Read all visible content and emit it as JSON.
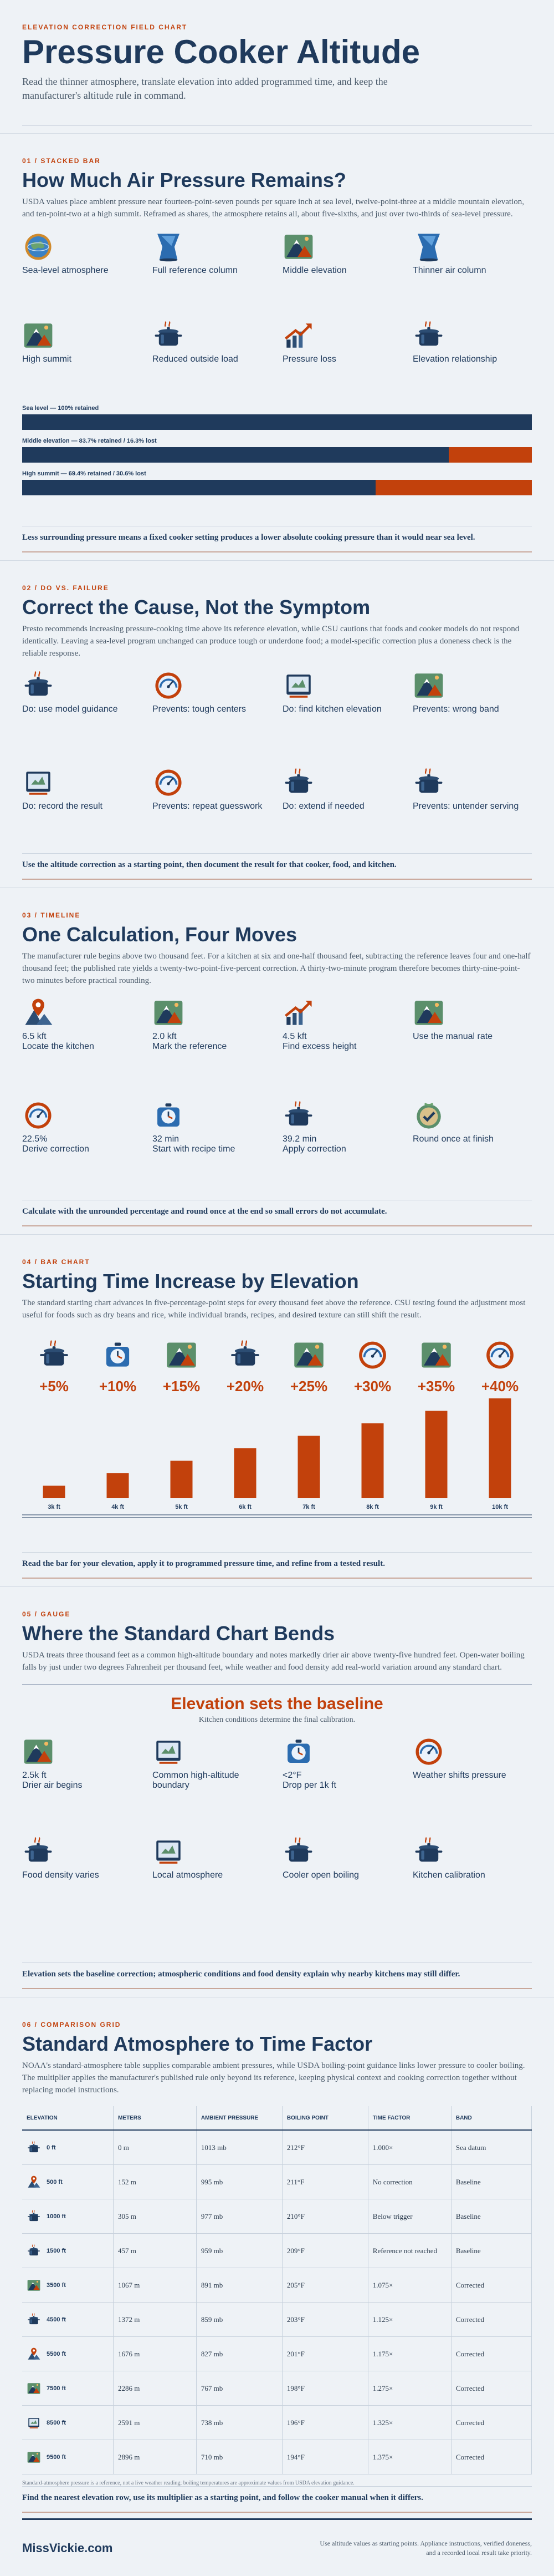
{
  "header": {
    "kicker": "ELEVATION CORRECTION FIELD CHART",
    "title": "Pressure Cooker Altitude",
    "subtitle": "Read the thinner atmosphere, translate elevation into added programmed time, and keep the manufacturer's altitude rule in command."
  },
  "pressure": {
    "label": "01 / STACKED BAR",
    "heading": "How Much Air Pressure Remains?",
    "text": "USDA values place ambient pressure near fourteen-point-seven pounds per square inch at sea level, twelve-point-three at a middle mountain elevation, and ten-point-two at a high summit. Reframed as shares, the atmosphere retains all, about five-sixths, and just over two-thirds of sea-level pressure.",
    "cards": [
      "Sea-level atmosphere",
      "Full reference column",
      "Middle elevation",
      "Thinner air column",
      "High summit",
      "Reduced outside load",
      "Pressure loss",
      "Elevation relationship"
    ],
    "conclusion": "Less surrounding pressure means a fixed cooker setting produces a lower absolute cooking pressure than it would near sea level."
  },
  "failure": {
    "label": "02 / DO VS. FAILURE",
    "heading": "Correct the Cause, Not the Symptom",
    "text": "Presto recommends increasing pressure-cooking time above its reference elevation, while CSU cautions that foods and cooker models do not respond identically. Leaving a sea-level program unchanged can produce tough or underdone food; a model-specific correction plus a doneness check is the reliable response.",
    "cards": [
      "Do: use model guidance",
      "Prevents: tough centers",
      "Do: find kitchen elevation",
      "Prevents: wrong band",
      "Do: record the result",
      "Prevents: repeat guesswork",
      "Do: extend if needed",
      "Prevents: untender serving"
    ],
    "conclusion": "Use the altitude correction as a starting point, then document the result for that cooker, food, and kitchen."
  },
  "timeline": {
    "label": "03 / TIMELINE",
    "heading": "One Calculation, Four Moves",
    "text": "The manufacturer rule begins above two thousand feet. For a kitchen at six and one-half thousand feet, subtracting the reference leaves four and one-half thousand feet; the published rate yields a twenty-two-point-five-percent correction. A thirty-two-minute program therefore becomes thirty-nine-point-two minutes before practical rounding.",
    "cards": [
      {
        "value": "6.5 kft",
        "label": "Locate the kitchen"
      },
      {
        "value": "2.0 kft",
        "label": "Mark the reference"
      },
      {
        "value": "4.5 kft",
        "label": "Find excess height"
      },
      {
        "label": "Use the manual rate"
      },
      {
        "value": "22.5%",
        "label": "Derive correction"
      },
      {
        "value": "32 min",
        "label": "Start with recipe time"
      },
      {
        "value": "39.2 min",
        "label": "Apply correction"
      },
      {
        "label": "Round once at finish"
      }
    ],
    "conclusion": "Calculate with the unrounded percentage and round once at the end so small errors do not accumulate."
  },
  "barsec": {
    "label": "04 / BAR CHART",
    "heading": "Starting Time Increase by Elevation",
    "text": "The standard starting chart advances in five-percentage-point steps for every thousand feet above the reference. CSU testing found the adjustment most useful for foods such as dry beans and rice, while individual brands, recipes, and desired texture can still shift the result.",
    "conclusion": "Read the bar for your elevation, apply it to programmed pressure time, and refine from a tested result."
  },
  "gauge": {
    "label": "05 / GAUGE",
    "heading": "Where the Standard Chart Bends",
    "text": "USDA treats three thousand feet as a common high-altitude boundary and notes markedly drier air above twenty-five hundred feet. Open-water boiling falls by just under two degrees Fahrenheit per thousand feet, while weather and food density add real-world variation around any standard chart.",
    "banner": "Elevation sets the baseline",
    "banner_sub": "Kitchen conditions determine the final calibration.",
    "cards": [
      {
        "value": "2.5k ft",
        "label": "Drier air begins"
      },
      {
        "label": "Common high-altitude boundary"
      },
      {
        "value": "<2°F",
        "label": "Drop per 1k ft"
      },
      {
        "label": "Weather shifts pressure"
      },
      {
        "label": "Food density varies"
      },
      {
        "label": "Local atmosphere"
      },
      {
        "label": "Cooler open boiling"
      },
      {
        "label": "Kitchen calibration"
      }
    ],
    "conclusion": "Elevation sets the baseline correction; atmospheric conditions and food density explain why nearby kitchens may still differ."
  },
  "comparison": {
    "label": "06 / COMPARISON GRID",
    "heading": "Standard Atmosphere to Time Factor",
    "text": "NOAA's standard-atmosphere table supplies comparable ambient pressures, while USDA boiling-point guidance links lower pressure to cooler boiling. The multiplier applies the manufacturer's published rule only beyond its reference, keeping physical context and cooking correction together without replacing model instructions.",
    "table": {
      "columns": [
        "ELEVATION",
        "METERS",
        "AMBIENT PRESSURE",
        "BOILING POINT",
        "TIME FACTOR",
        "BAND"
      ],
      "rows": [
        [
          "0 ft",
          "0 m",
          "1013 mb",
          "212°F",
          "1.000×",
          "Sea datum"
        ],
        [
          "500 ft",
          "152 m",
          "995 mb",
          "211°F",
          "No correction",
          "Baseline"
        ],
        [
          "1000 ft",
          "305 m",
          "977 mb",
          "210°F",
          "Below trigger",
          "Baseline"
        ],
        [
          "1500 ft",
          "457 m",
          "959 mb",
          "209°F",
          "Reference not reached",
          "Baseline"
        ],
        [
          "3500 ft",
          "1067 m",
          "891 mb",
          "205°F",
          "1.075×",
          "Corrected"
        ],
        [
          "4500 ft",
          "1372 m",
          "859 mb",
          "203°F",
          "1.125×",
          "Corrected"
        ],
        [
          "5500 ft",
          "1676 m",
          "827 mb",
          "201°F",
          "1.175×",
          "Corrected"
        ],
        [
          "7500 ft",
          "2286 m",
          "767 mb",
          "198°F",
          "1.275×",
          "Corrected"
        ],
        [
          "8500 ft",
          "2591 m",
          "738 mb",
          "196°F",
          "1.325×",
          "Corrected"
        ],
        [
          "9500 ft",
          "2896 m",
          "710 mb",
          "194°F",
          "1.375×",
          "Corrected"
        ]
      ]
    },
    "note": "Standard-atmosphere pressure is a reference, not a live weather reading; boiling temperatures are approximate values from USDA elevation guidance.",
    "conclusion": "Find the nearest elevation row, use its multiplier as a starting point, and follow the cooker manual when it differs."
  },
  "footer": {
    "brand": "MissVickie.com",
    "note": "Use altitude values as starting points. Appliance instructions, verified doneness, and a recorded local result take priority."
  },
  "chart_data": [
    {
      "type": "bar",
      "stacked": true,
      "orientation": "horizontal",
      "categories": [
        "Sea level — 100% retained",
        "Middle elevation — 83.7% retained / 16.3% lost",
        "High summit — 69.4% retained / 30.6% lost"
      ],
      "series": [
        {
          "color": "#1f3a5c",
          "values": [
            100,
            83.7,
            69.4
          ]
        },
        {
          "color": "#c2410c",
          "values": [
            0,
            16.3,
            30.6
          ]
        }
      ]
    },
    {
      "type": "bar",
      "categories": [
        "3k ft",
        "4k ft",
        "5k ft",
        "6k ft",
        "7k ft",
        "8k ft",
        "9k ft",
        "10k ft"
      ],
      "values": [
        5,
        10,
        15,
        20,
        25,
        30,
        35,
        40
      ],
      "value_labels": [
        "+5%",
        "+10%",
        "+15%",
        "+20%",
        "+25%",
        "+30%",
        "+35%",
        "+40%"
      ],
      "color": "#c2410c"
    }
  ]
}
